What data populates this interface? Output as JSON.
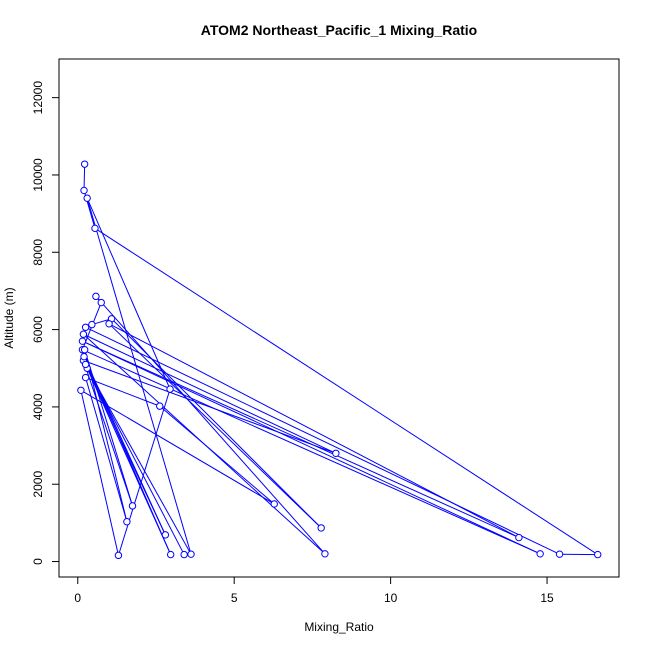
{
  "chart_data": {
    "type": "line",
    "title": "ATOM2 Northeast_Pacific_1 Mixing_Ratio",
    "xlabel": "Mixing_Ratio",
    "ylabel": "Altitude (m)",
    "xlim": [
      -0.6,
      17.3
    ],
    "ylim": [
      -400,
      13000
    ],
    "xticks": [
      0,
      5,
      10,
      15
    ],
    "yticks": [
      0,
      2000,
      4000,
      6000,
      8000,
      10000,
      12000
    ],
    "grid": false,
    "legend": "none",
    "series_color": "#0000ff",
    "series": [
      {
        "points": [
          [
            0.22,
            10280
          ],
          [
            0.2,
            9600
          ],
          [
            0.55,
            8620
          ],
          [
            16.62,
            180
          ],
          [
            15.4,
            190
          ],
          [
            0.25,
            6060
          ],
          [
            0.45,
            6130
          ],
          [
            1.08,
            6280
          ],
          [
            7.78,
            870
          ],
          [
            1.0,
            6150
          ],
          [
            14.1,
            620
          ],
          [
            0.15,
            5700
          ],
          [
            14.78,
            200
          ],
          [
            0.15,
            5480
          ],
          [
            0.75,
            6700
          ],
          [
            0.58,
            6860
          ],
          [
            7.9,
            200
          ],
          [
            0.18,
            5880
          ],
          [
            8.25,
            2800
          ],
          [
            0.18,
            5200
          ],
          [
            1.75,
            1440
          ],
          [
            0.22,
            5480
          ],
          [
            1.57,
            1030
          ],
          [
            0.25,
            4760
          ],
          [
            2.62,
            4020
          ],
          [
            6.28,
            1490
          ],
          [
            0.1,
            4430
          ],
          [
            1.3,
            160
          ],
          [
            2.95,
            4460
          ],
          [
            0.3,
            9400
          ],
          [
            3.62,
            190
          ],
          [
            0.3,
            5000
          ],
          [
            2.97,
            180
          ],
          [
            0.2,
            5300
          ],
          [
            2.8,
            690
          ],
          [
            0.25,
            5100
          ],
          [
            3.4,
            180
          ]
        ]
      }
    ]
  }
}
